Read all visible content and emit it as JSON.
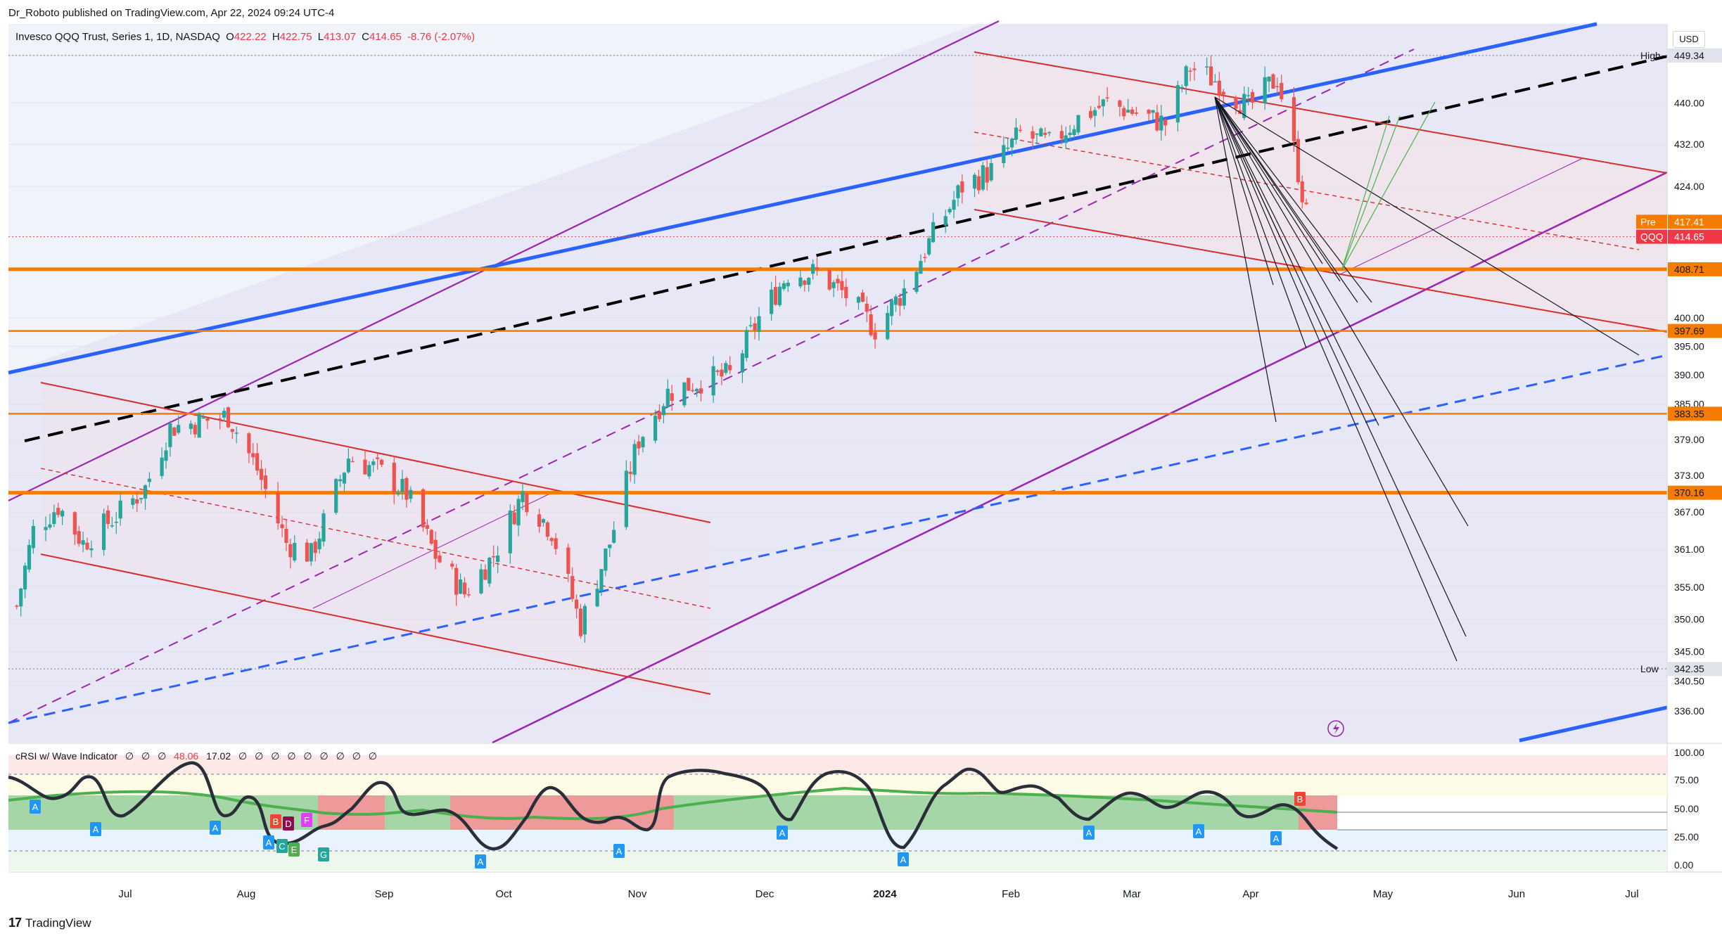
{
  "header": {
    "published": "Dr_Roboto published on TradingView.com, Apr 22, 2024 09:24 UTC-4",
    "symbol": "Invesco QQQ Trust, Series 1, 1D, NASDAQ",
    "open_label": "O",
    "open": "422.22",
    "high_label": "H",
    "high": "422.75",
    "low_label": "L",
    "low": "413.07",
    "close_label": "C",
    "close": "414.65",
    "change": "-8.76 (-2.07%)",
    "currency": "USD"
  },
  "indicator": {
    "name": "cRSI w/ Wave Indicator",
    "values": [
      "∅",
      "∅",
      "∅",
      "48.06",
      "17.02",
      "∅",
      "∅",
      "∅",
      "∅",
      "∅",
      "∅",
      "∅",
      "∅",
      "∅"
    ],
    "ticks": [
      "100.00",
      "75.00",
      "50.00",
      "25.00",
      "0.00"
    ]
  },
  "footer": {
    "brand": "TradingView",
    "logo": "tradingview-logo-icon"
  },
  "colors": {
    "up": "#26a69a",
    "down": "#ef5350",
    "orange": "#f57c00",
    "blue": "#2962ff",
    "purple": "#9c27b0",
    "red": "#d32f2f"
  },
  "chart_data": {
    "type": "candlestick",
    "title": "",
    "xlabel": "",
    "ylabel": "",
    "x_ticks": [
      "Jul",
      "Aug",
      "Sep",
      "Oct",
      "Nov",
      "Dec",
      "2024",
      "Feb",
      "Mar",
      "Apr",
      "May",
      "Jun",
      "Jul"
    ],
    "y_ticks": [
      336.0,
      340.5,
      345.0,
      350.0,
      355.0,
      361.0,
      367.0,
      373.0,
      379.0,
      385.0,
      390.0,
      395.0,
      400.0,
      408.71,
      424.0,
      432.0,
      440.0,
      449.34
    ],
    "y_tick_labels": [
      "336.00",
      "340.50",
      "345.00",
      "350.00",
      "355.00",
      "361.00",
      "367.00",
      "373.00",
      "379.00",
      "385.00",
      "390.00",
      "395.00",
      "400.00",
      "",
      "424.00",
      "432.00",
      "440.00",
      ""
    ],
    "ylim": [
      333,
      452
    ],
    "scale": "log",
    "price_labels": [
      {
        "label": "High",
        "value": "449.34"
      },
      {
        "label": "Pre",
        "value": "417.41"
      },
      {
        "label": "QQQ",
        "value": "414.65"
      },
      {
        "label": "",
        "value": "408.71"
      },
      {
        "label": "",
        "value": "397.69"
      },
      {
        "label": "",
        "value": "383.35"
      },
      {
        "label": "",
        "value": "370.16"
      },
      {
        "label": "Low",
        "value": "342.35"
      }
    ],
    "support_levels": [
      408.71,
      397.69,
      383.35,
      370.16
    ],
    "candles_close_path": [
      [
        "Jun 12",
        352
      ],
      [
        "Jun 16",
        364
      ],
      [
        "Jun 22",
        368
      ],
      [
        "Jun 28",
        362
      ],
      [
        "Jul 7",
        367
      ],
      [
        "Jul 13",
        371
      ],
      [
        "Jul 19",
        381
      ],
      [
        "Jul 26",
        382
      ],
      [
        "Aug 2",
        383
      ],
      [
        "Aug 9",
        374
      ],
      [
        "Aug 16",
        362
      ],
      [
        "Aug 22",
        360
      ],
      [
        "Aug 31",
        376
      ],
      [
        "Sep 7",
        374
      ],
      [
        "Sep 14",
        370
      ],
      [
        "Sep 21",
        360
      ],
      [
        "Sep 28",
        354
      ],
      [
        "Oct 5",
        360
      ],
      [
        "Oct 12",
        370
      ],
      [
        "Oct 19",
        364
      ],
      [
        "Oct 26",
        349
      ],
      [
        "Nov 2",
        362
      ],
      [
        "Nov 9",
        379
      ],
      [
        "Nov 16",
        387
      ],
      [
        "Nov 24",
        389
      ],
      [
        "Dec 1",
        390
      ],
      [
        "Dec 8",
        400
      ],
      [
        "Dec 15",
        408
      ],
      [
        "Dec 22",
        408
      ],
      [
        "Dec 29",
        404
      ],
      [
        "Jan 5",
        398
      ],
      [
        "Jan 12",
        405
      ],
      [
        "Jan 19",
        415
      ],
      [
        "Jan 26",
        424
      ],
      [
        "Feb 2",
        427
      ],
      [
        "Feb 9",
        434
      ],
      [
        "Feb 16",
        432
      ],
      [
        "Feb 23",
        437
      ],
      [
        "Mar 1",
        440
      ],
      [
        "Mar 8",
        438
      ],
      [
        "Mar 15",
        436
      ],
      [
        "Mar 21",
        447
      ],
      [
        "Mar 28",
        444
      ],
      [
        "Apr 4",
        439
      ],
      [
        "Apr 11",
        445
      ],
      [
        "Apr 15",
        431
      ],
      [
        "Apr 19",
        414.65
      ]
    ]
  }
}
